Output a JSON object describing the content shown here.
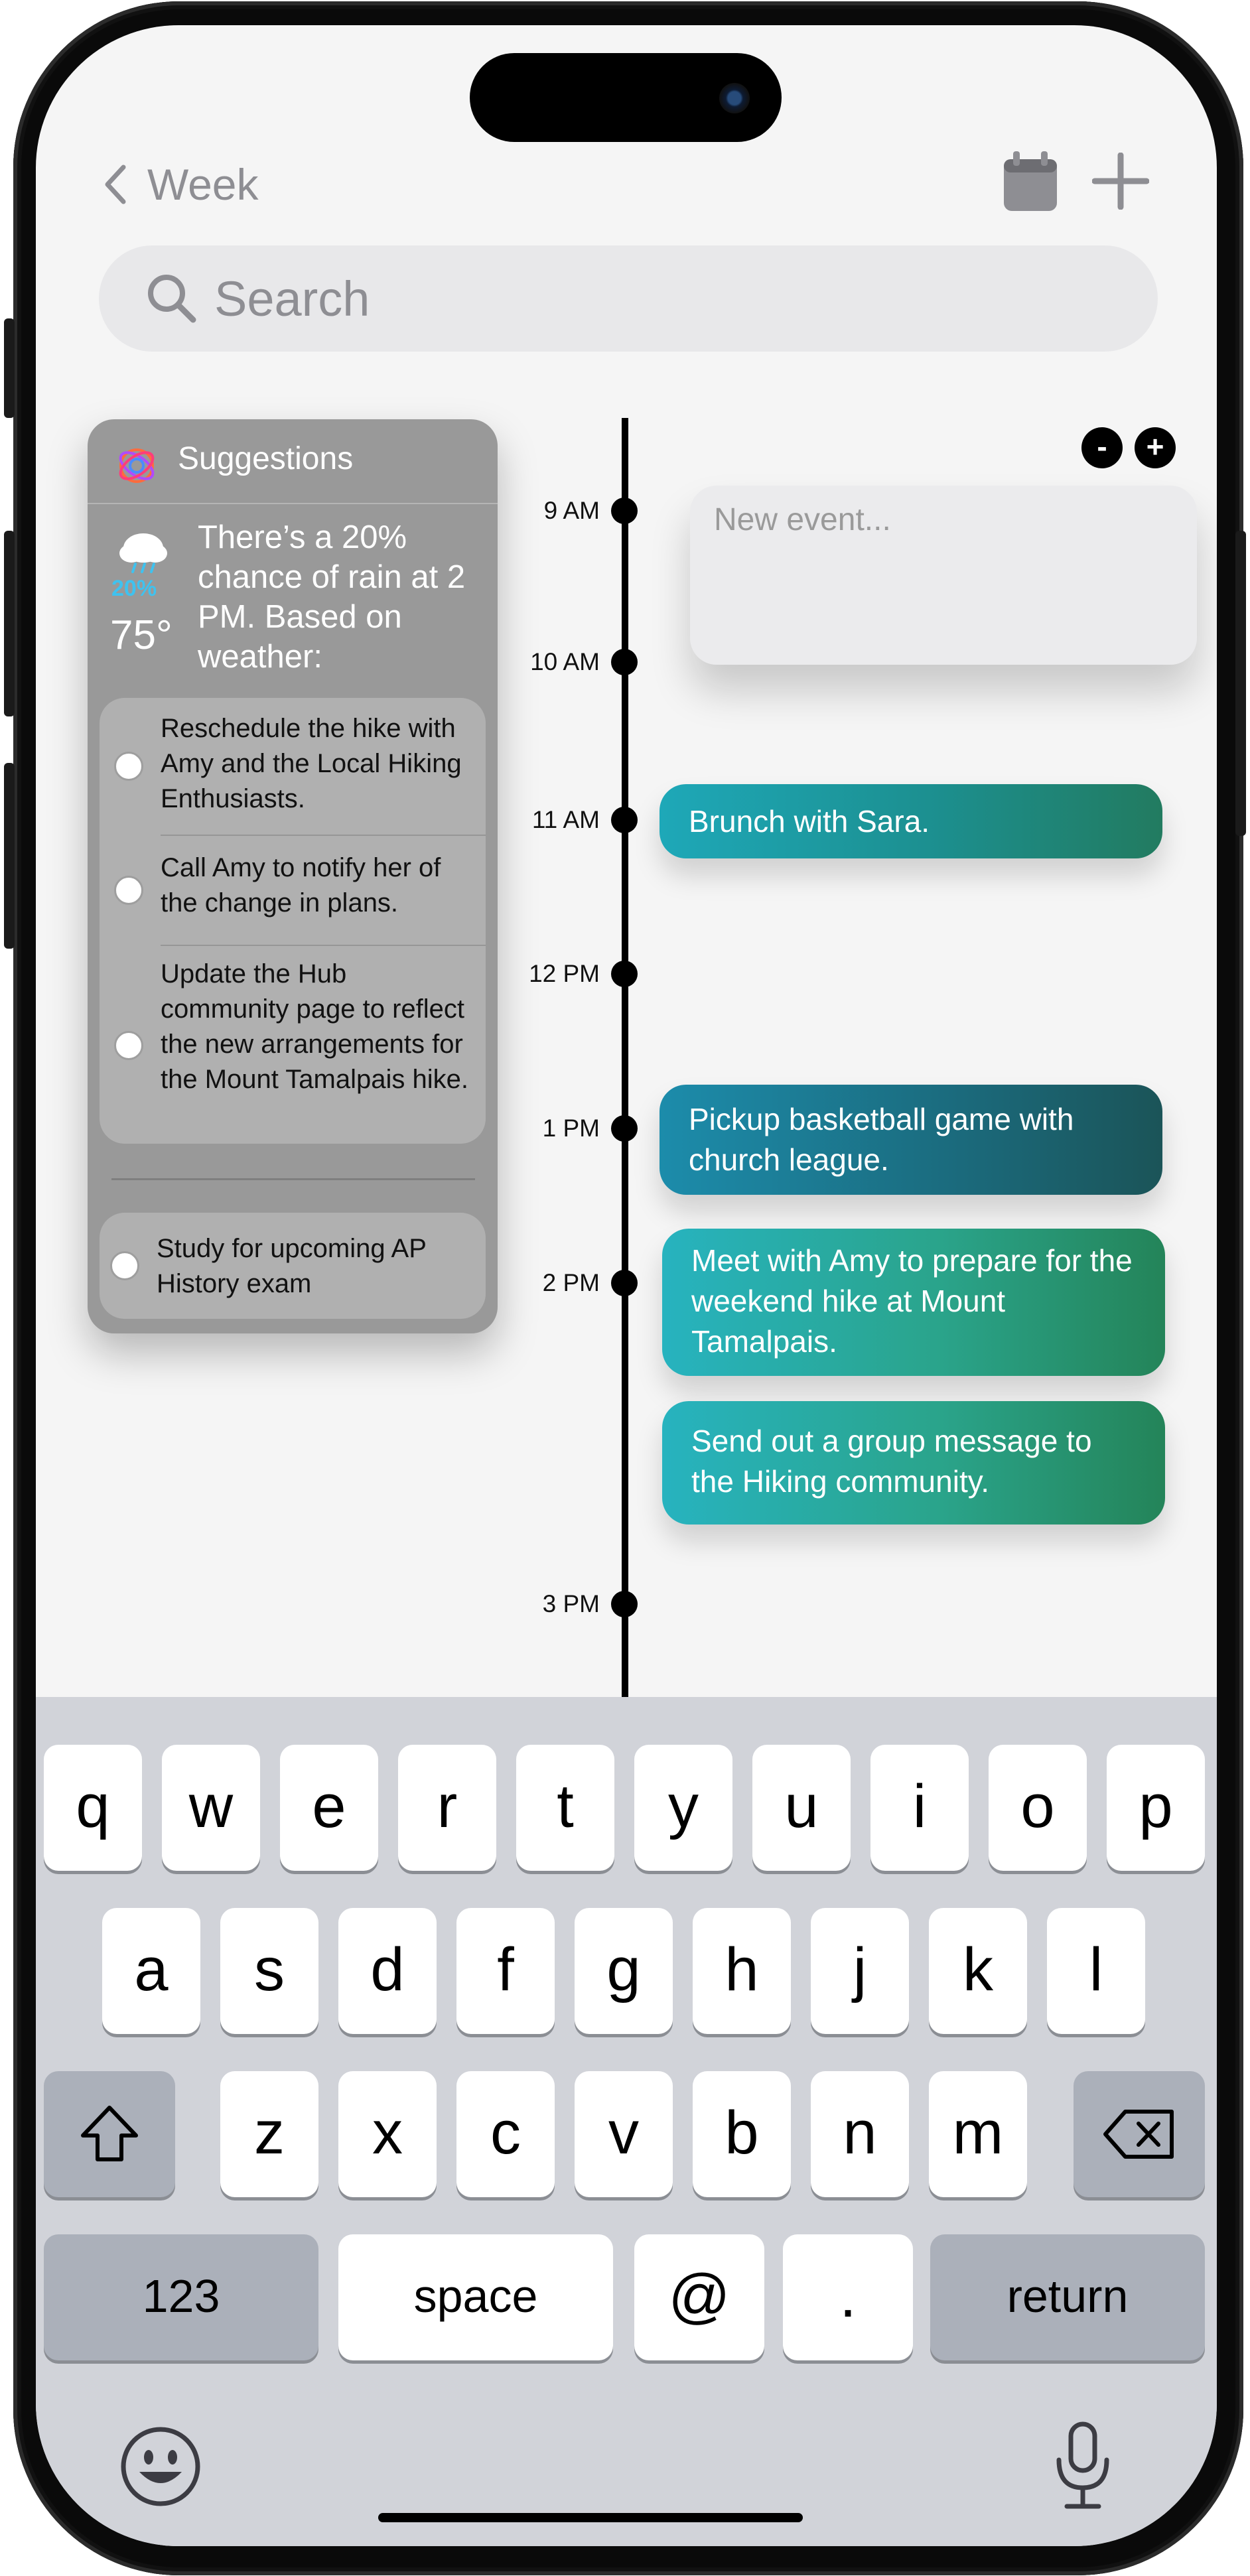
{
  "nav": {
    "back_label": "Week"
  },
  "search": {
    "placeholder": "Search"
  },
  "suggestions": {
    "title": "Suggestions",
    "weather": {
      "rain_chance": "20%",
      "temperature": "75°",
      "message": "There’s a 20% chance of rain at 2 PM.  Based on weather:"
    },
    "items": [
      "Reschedule the hike with Amy and the Local Hiking Enthusiasts.",
      "Call Amy to notify her of the change in plans.",
      "Update the Hub community page to reflect the new arrangements for the Mount Tamalpais hike."
    ],
    "extra_item": "Study for upcoming AP History exam"
  },
  "timeline": {
    "labels": [
      "9 AM",
      "10 AM",
      "11 AM",
      "12 PM",
      "1 PM",
      "2 PM",
      "3 PM"
    ]
  },
  "zoom": {
    "minus": "-",
    "plus": "+"
  },
  "new_event": {
    "placeholder": "New event..."
  },
  "events": [
    "Brunch with Sara.",
    "Pickup basketball game with church league.",
    "Meet with Amy to prepare for the weekend hike at Mount Tamalpais.",
    "Send out a group message to the Hiking community."
  ],
  "keyboard": {
    "row1": [
      "q",
      "w",
      "e",
      "r",
      "t",
      "y",
      "u",
      "i",
      "o",
      "p"
    ],
    "row2": [
      "a",
      "s",
      "d",
      "f",
      "g",
      "h",
      "j",
      "k",
      "l"
    ],
    "row3": [
      "z",
      "x",
      "c",
      "v",
      "b",
      "n",
      "m"
    ],
    "numbers": "123",
    "space": "space",
    "at": "@",
    "period": ".",
    "return": "return"
  }
}
